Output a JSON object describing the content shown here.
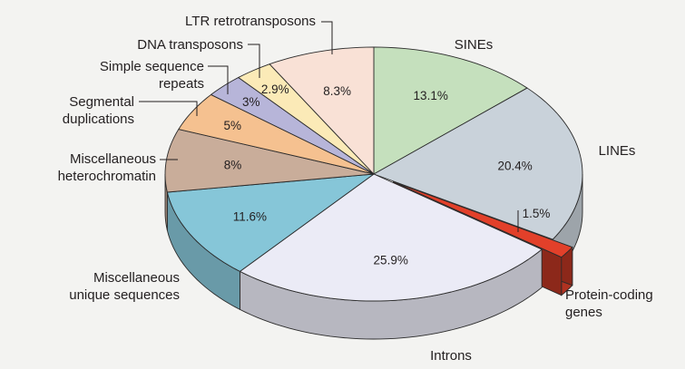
{
  "chart_data": {
    "type": "pie",
    "title": "",
    "slices": [
      {
        "label": "SINEs",
        "value": 13.1,
        "pct_label": "13.1%",
        "color": "#c5e0bd"
      },
      {
        "label": "LINEs",
        "value": 20.4,
        "pct_label": "20.4%",
        "color": "#c9d2da"
      },
      {
        "label": "Protein-coding genes",
        "value": 1.5,
        "pct_label": "1.5%",
        "color": "#e2402a",
        "exploded": true
      },
      {
        "label": "Introns",
        "value": 25.9,
        "pct_label": "25.9%",
        "color": "#ebebf6"
      },
      {
        "label": "Miscellaneous unique sequences",
        "value": 11.6,
        "pct_label": "11.6%",
        "color": "#86c6d8"
      },
      {
        "label": "Miscellaneous heterochromatin",
        "value": 8,
        "pct_label": "8%",
        "color": "#c9ad9a"
      },
      {
        "label": "Segmental duplications",
        "value": 5,
        "pct_label": "5%",
        "color": "#f5c190"
      },
      {
        "label": "Simple sequence repeats",
        "value": 3,
        "pct_label": "3%",
        "color": "#b7b5d9"
      },
      {
        "label": "DNA transposons",
        "value": 2.9,
        "pct_label": "2.9%",
        "color": "#fbeab7"
      },
      {
        "label": "LTR retrotransposons",
        "value": 8.3,
        "pct_label": "8.3%",
        "color": "#f9e1d6"
      }
    ],
    "display_labels": [
      {
        "label": "SINEs",
        "lines": [
          "SINEs"
        ]
      },
      {
        "label": "LINEs",
        "lines": [
          "LINEs"
        ]
      },
      {
        "label": "Protein-coding genes",
        "lines": [
          "Protein-coding",
          "genes"
        ]
      },
      {
        "label": "Introns",
        "lines": [
          "Introns"
        ]
      },
      {
        "label": "Miscellaneous unique sequences",
        "lines": [
          "Miscellaneous",
          "unique sequences"
        ]
      },
      {
        "label": "Miscellaneous heterochromatin",
        "lines": [
          "Miscellaneous",
          "heterochromatin"
        ]
      },
      {
        "label": "Segmental duplications",
        "lines": [
          "Segmental",
          "duplications"
        ]
      },
      {
        "label": "Simple sequence repeats",
        "lines": [
          "Simple sequence",
          "repeats"
        ]
      },
      {
        "label": "DNA transposons",
        "lines": [
          "DNA transposons"
        ]
      },
      {
        "label": "LTR retrotransposons",
        "lines": [
          "LTR retrotransposons"
        ]
      }
    ],
    "style": "3d-exploded",
    "colors": {
      "background": "#f3f3f1",
      "outline": "#2b2b2b",
      "text": "#231f20"
    }
  }
}
